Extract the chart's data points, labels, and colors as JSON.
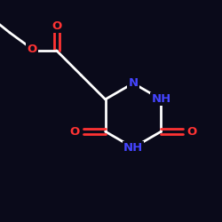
{
  "bg_color": "#0a0a1a",
  "bond_color": "#ffffff",
  "N_color": "#4444ff",
  "O_color": "#ff3333",
  "line_width": 2.0,
  "figsize": [
    2.5,
    2.5
  ],
  "dpi": 100,
  "xlim": [
    0,
    10
  ],
  "ylim": [
    0,
    10
  ]
}
